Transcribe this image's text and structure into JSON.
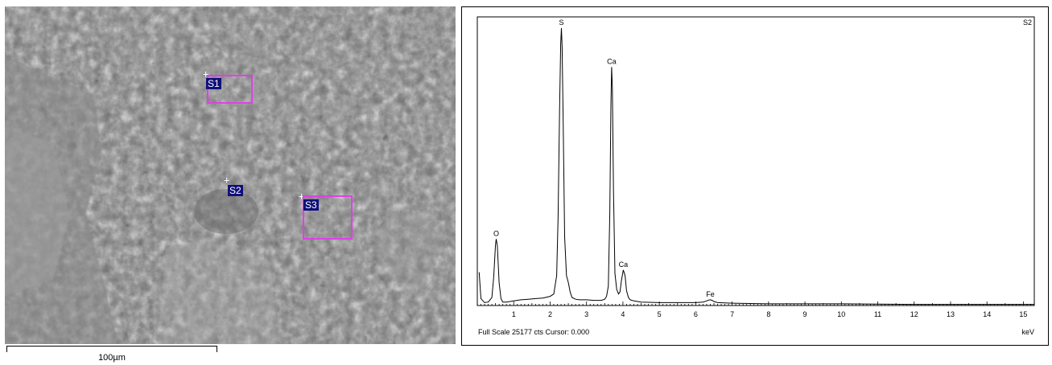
{
  "micrograph": {
    "rois": [
      {
        "label": "S1"
      },
      {
        "label": "S2"
      },
      {
        "label": "S3"
      }
    ],
    "scale_bar_label": "100µm"
  },
  "chart_data": {
    "type": "line",
    "title": "",
    "xlabel": "keV",
    "ylabel": "",
    "xlim": [
      0,
      15.3
    ],
    "ylim": [
      0,
      25177
    ],
    "x_ticks": [
      "1",
      "2",
      "3",
      "4",
      "5",
      "6",
      "7",
      "8",
      "9",
      "10",
      "11",
      "12",
      "13",
      "14",
      "15"
    ],
    "spectrum_label": "S2",
    "footer": "Full Scale 25177 cts Cursor: 0.000",
    "peaks": [
      {
        "label": "O",
        "energy": 0.52,
        "counts": 5800
      },
      {
        "label": "S",
        "energy": 2.31,
        "counts": 24200
      },
      {
        "label": "Ca",
        "energy": 3.69,
        "counts": 20800
      },
      {
        "label": "Ca",
        "energy": 4.01,
        "counts": 3100
      },
      {
        "label": "Fe",
        "energy": 6.4,
        "counts": 500
      }
    ],
    "series": [
      {
        "x": [
          0.05,
          0.1,
          0.2,
          0.3,
          0.4,
          0.45,
          0.5,
          0.52,
          0.55,
          0.6,
          0.65,
          0.7,
          0.8,
          1.0,
          1.2,
          1.4,
          1.6,
          1.8,
          2.0,
          2.1,
          2.18,
          2.22,
          2.26,
          2.29,
          2.31,
          2.33,
          2.36,
          2.4,
          2.45,
          2.5,
          2.55,
          2.6,
          2.7,
          2.8,
          3.0,
          3.2,
          3.4,
          3.5,
          3.55,
          3.6,
          3.64,
          3.67,
          3.69,
          3.71,
          3.74,
          3.78,
          3.83,
          3.88,
          3.92,
          3.96,
          4.01,
          4.06,
          4.1,
          4.15,
          4.2,
          4.3,
          4.5,
          5.0,
          5.5,
          6.0,
          6.2,
          6.3,
          6.35,
          6.4,
          6.45,
          6.5,
          6.6,
          7.0,
          8.0,
          9.0,
          10.0,
          11.0,
          12.0,
          13.0,
          14.0,
          15.0,
          15.3
        ],
        "y": [
          2900,
          600,
          250,
          300,
          700,
          2500,
          5300,
          5800,
          5200,
          2000,
          600,
          300,
          300,
          400,
          500,
          550,
          600,
          650,
          800,
          1000,
          2600,
          7800,
          17000,
          22800,
          24200,
          22500,
          16000,
          6000,
          2600,
          2000,
          1200,
          700,
          550,
          500,
          500,
          450,
          450,
          550,
          800,
          1700,
          8000,
          17500,
          20800,
          19000,
          10000,
          2800,
          1400,
          1000,
          1200,
          2200,
          3100,
          2600,
          1300,
          700,
          500,
          400,
          300,
          250,
          250,
          250,
          300,
          400,
          470,
          500,
          450,
          350,
          250,
          200,
          150,
          150,
          150,
          120,
          100,
          100,
          100,
          100,
          100
        ]
      }
    ]
  }
}
